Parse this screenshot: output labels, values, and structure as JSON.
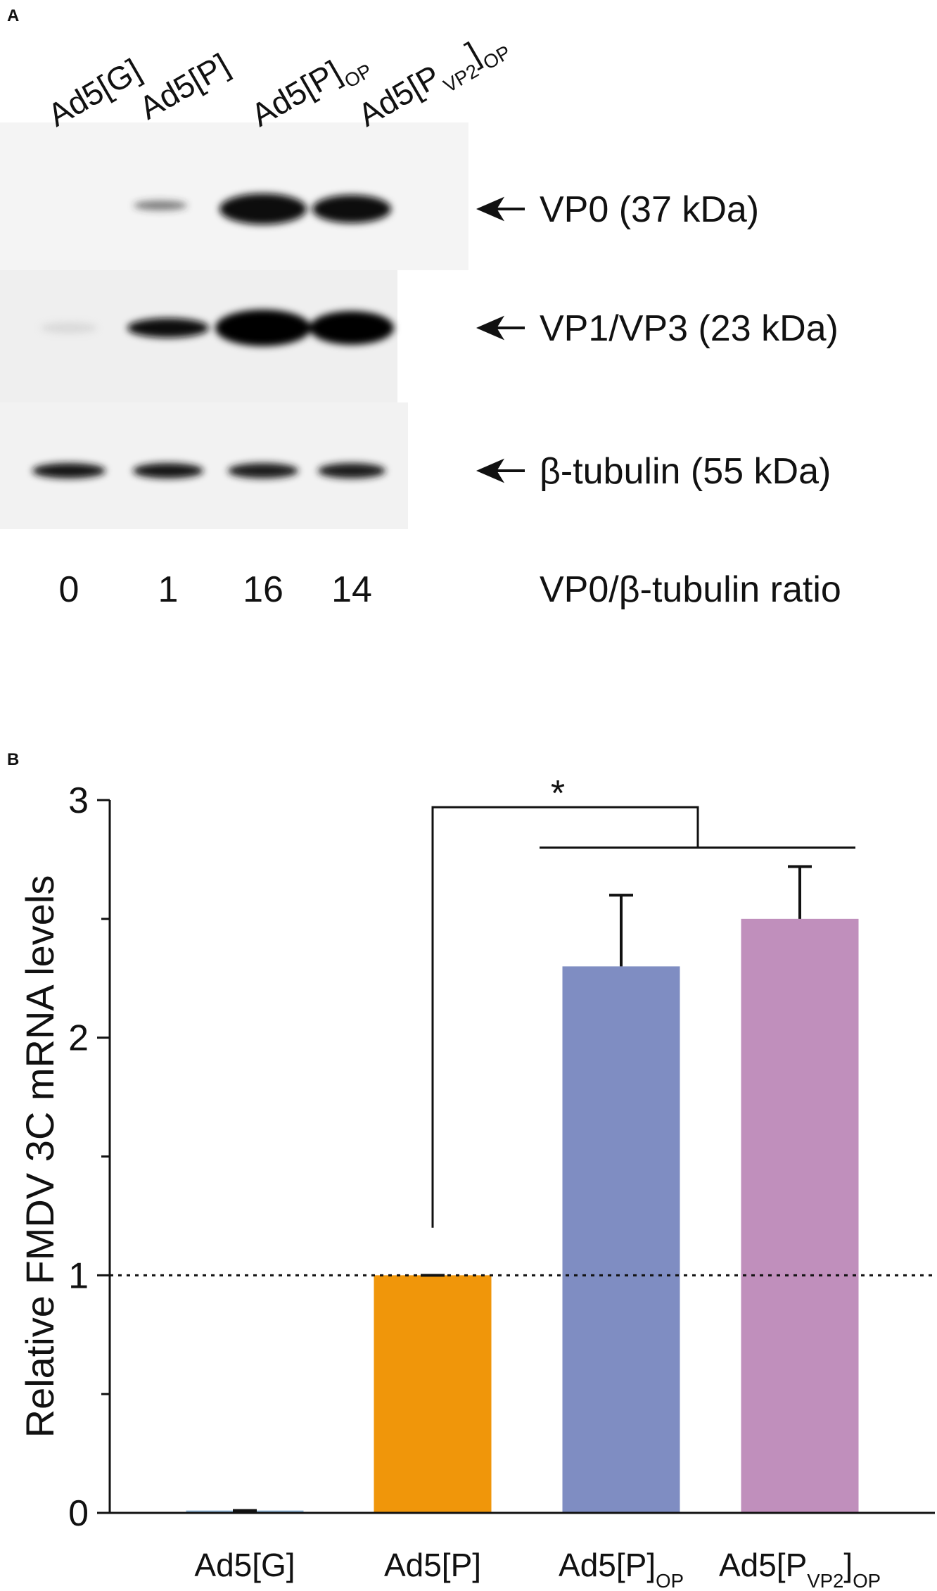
{
  "panel_a": {
    "label": "A",
    "lanes": [
      [
        "Ad5[G]"
      ],
      [
        "Ad5[P]"
      ],
      [
        "Ad5[P]",
        {
          "sub": "OP"
        }
      ],
      [
        "Ad5[P",
        {
          "sub": "VP2"
        },
        "]",
        {
          "sub": "OP"
        }
      ]
    ],
    "band_labels": [
      "VP0 (37 kDa)",
      "VP1/VP3 (23 kDa)",
      "β-tubulin (55 kDa)"
    ],
    "ratios": [
      0,
      1,
      16,
      14
    ],
    "ratio_label": "VP0/β-tubulin ratio"
  },
  "chart_data": {
    "type": "bar",
    "panel_label": "B",
    "ylabel": "Relative FMDV 3C mRNA levels",
    "categories": [
      [
        "Ad5[G]"
      ],
      [
        "Ad5[P]"
      ],
      [
        "Ad5[P]",
        {
          "sub": "OP"
        }
      ],
      [
        "Ad5[P",
        {
          "sub": "VP2"
        },
        "]",
        {
          "sub": "OP"
        }
      ]
    ],
    "values": [
      0.01,
      1,
      2.3,
      2.5
    ],
    "errors": [
      0,
      0,
      0.3,
      0.22
    ],
    "colors": [
      "#8fb5d6",
      "#f0960a",
      "#7f8dc2",
      "#c08fbc"
    ],
    "ylim": [
      0,
      3
    ],
    "yticks": [
      0,
      1,
      2,
      3
    ],
    "minor_yticks": [
      0.5,
      1.5,
      2.5
    ],
    "reference_line": 1,
    "significance": {
      "label": "*",
      "from": 1,
      "to": [
        2,
        3
      ]
    }
  }
}
